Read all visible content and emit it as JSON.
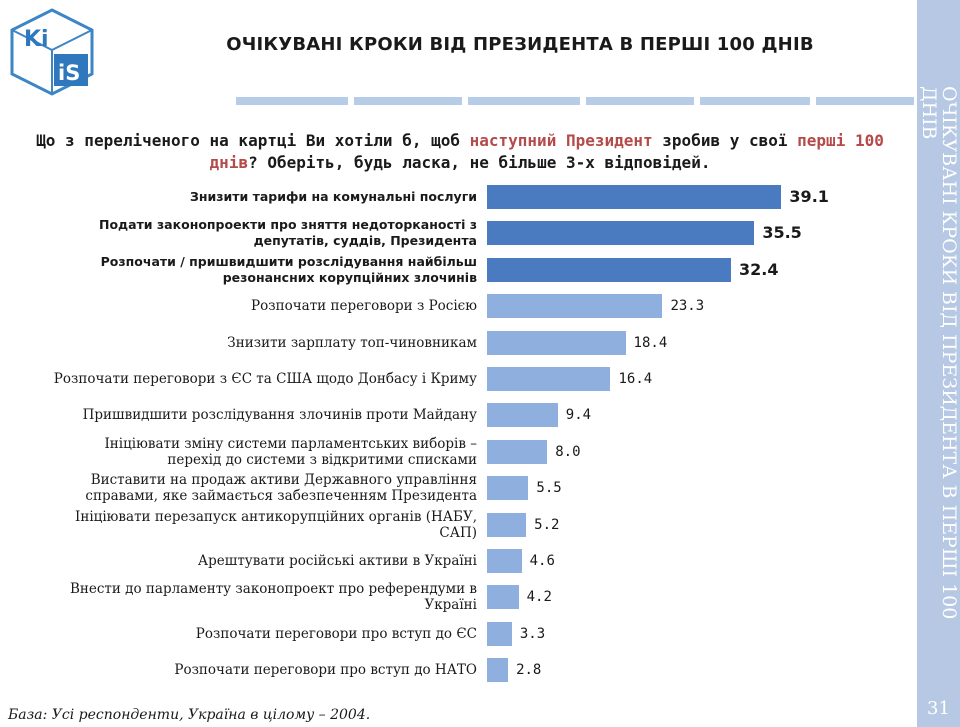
{
  "logo": {
    "text_top": "Ki",
    "text_bottom": "iS",
    "icon": "kiis-cube-logo"
  },
  "header": {
    "title": "ОЧІКУВАНІ КРОКИ ВІД ПРЕЗИДЕНТА В ПЕРШІ 100 ДНІВ"
  },
  "sidebar": {
    "title": "ОЧІКУВАНІ КРОКИ ВІД ПРЕЗИДЕНТА В ПЕРШІ 100 ДНІВ",
    "page_number": "31"
  },
  "question": {
    "part1": "Що з переліченого на картці Ви хотіли б, щоб ",
    "highlight1": "наступний Президент",
    "part2": " зробив у свої ",
    "highlight2": "перші 100 днів",
    "part3": "? Оберіть, будь ласка, не більше 3-х відповідей."
  },
  "footnote": "База: Усі респонденти, Україна в цілому – 2004.",
  "colors": {
    "top_bar": "#4a7bc0",
    "bar": "#8fb0de",
    "highlight": "#b54a4a",
    "sidebar": "#b6c8e3"
  },
  "chart_data": {
    "type": "bar",
    "orientation": "horizontal",
    "categories": [
      "Знизити тарифи на комунальні послуги",
      "Подати законопроекти про зняття недоторканості з депутатів, суддів, Президента",
      "Розпочати / пришвидшити розслідування найбільш резонансних корупційних злочинів",
      "Розпочати переговори з Росією",
      "Знизити зарплату топ-чиновникам",
      "Розпочати переговори з ЄС та США щодо Донбасу і Криму",
      "Пришвидшити розслідування злочинів проти Майдану",
      "Ініціювати зміну системи парламентських виборів – перехід до системи з відкритими списками",
      "Виставити на продаж активи Державного управління справами, яке займається забезпеченням Президента",
      "Ініціювати перезапуск антикорупційних органів (НАБУ, САП)",
      "Арештувати російські активи в Україні",
      "Внести до парламенту законопроект про референдуми в Україні",
      "Розпочати переговори про вступ до ЄС",
      "Розпочати переговори про вступ до НАТО"
    ],
    "values": [
      39.1,
      35.5,
      32.4,
      23.3,
      18.4,
      16.4,
      9.4,
      8.0,
      5.5,
      5.2,
      4.6,
      4.2,
      3.3,
      2.8
    ],
    "value_labels": [
      "39.1",
      "35.5",
      "32.4",
      "23.3",
      "18.4",
      "16.4",
      "9.4",
      "8.0",
      "5.5",
      "5.2",
      "4.6",
      "4.2",
      "3.3",
      "2.8"
    ],
    "highlighted_top": 3,
    "xlim": [
      0,
      40
    ]
  }
}
